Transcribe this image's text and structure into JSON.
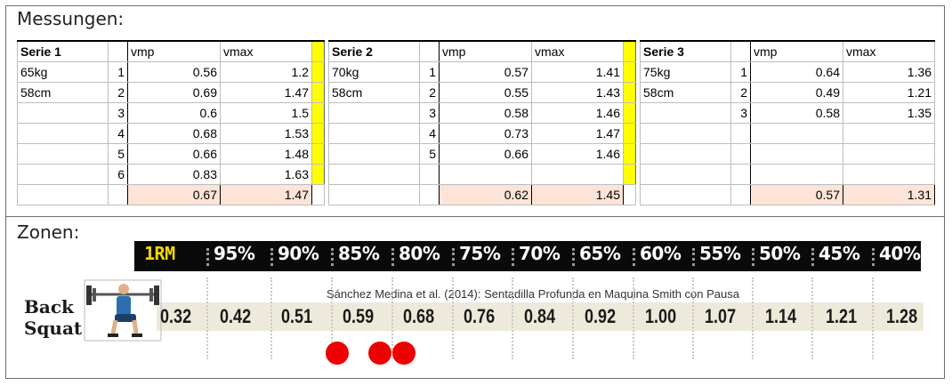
{
  "sections": {
    "measurements_title": "Messungen:",
    "zones_title": "Zonen:"
  },
  "series": [
    {
      "name": "Serie 1",
      "col_vmp": "vmp",
      "col_vmax": "vmax",
      "info": [
        "65kg",
        "58cm"
      ],
      "rows": [
        {
          "n": "1",
          "vmp": "0.56",
          "vmax": "1.2"
        },
        {
          "n": "2",
          "vmp": "0.69",
          "vmax": "1.47"
        },
        {
          "n": "3",
          "vmp": "0.6",
          "vmax": "1.5"
        },
        {
          "n": "4",
          "vmp": "0.68",
          "vmax": "1.53"
        },
        {
          "n": "5",
          "vmp": "0.66",
          "vmax": "1.48"
        },
        {
          "n": "6",
          "vmp": "0.83",
          "vmax": "1.63"
        }
      ],
      "avg_vmp": "0.67",
      "avg_vmax": "1.47"
    },
    {
      "name": "Serie 2",
      "col_vmp": "vmp",
      "col_vmax": "vmax",
      "info": [
        "70kg",
        "58cm"
      ],
      "rows": [
        {
          "n": "1",
          "vmp": "0.57",
          "vmax": "1.41"
        },
        {
          "n": "2",
          "vmp": "0.55",
          "vmax": "1.43"
        },
        {
          "n": "3",
          "vmp": "0.58",
          "vmax": "1.46"
        },
        {
          "n": "4",
          "vmp": "0.73",
          "vmax": "1.47"
        },
        {
          "n": "5",
          "vmp": "0.66",
          "vmax": "1.46"
        },
        {
          "n": "",
          "vmp": "",
          "vmax": ""
        }
      ],
      "avg_vmp": "0.62",
      "avg_vmax": "1.45"
    },
    {
      "name": "Serie 3",
      "col_vmp": "vmp",
      "col_vmax": "vmax",
      "info": [
        "75kg",
        "58cm"
      ],
      "rows": [
        {
          "n": "1",
          "vmp": "0.64",
          "vmax": "1.36"
        },
        {
          "n": "2",
          "vmp": "0.49",
          "vmax": "1.21"
        },
        {
          "n": "3",
          "vmp": "0.58",
          "vmax": "1.35"
        },
        {
          "n": "",
          "vmp": "",
          "vmax": ""
        },
        {
          "n": "",
          "vmp": "",
          "vmax": ""
        },
        {
          "n": "",
          "vmp": "",
          "vmax": ""
        }
      ],
      "avg_vmp": "0.57",
      "avg_vmax": "1.31"
    }
  ],
  "zones": {
    "percent_labels": [
      "1RM",
      "95%",
      "90%",
      "85%",
      "80%",
      "75%",
      "70%",
      "65%",
      "60%",
      "55%",
      "50%",
      "45%",
      "40%"
    ],
    "caption": "Sánchez Medina et al. (2014): Sentadilla Profunda en Maquina Smith con Pausa",
    "exercise_line1": "Back",
    "exercise_line2": "Squat",
    "velocities": [
      "0.32",
      "0.42",
      "0.51",
      "0.59",
      "0.68",
      "0.76",
      "0.84",
      "0.92",
      "1.00",
      "1.07",
      "1.14",
      "1.21",
      "1.28"
    ],
    "marker_color": "#ee0000",
    "header_accent": "#f5d900"
  }
}
